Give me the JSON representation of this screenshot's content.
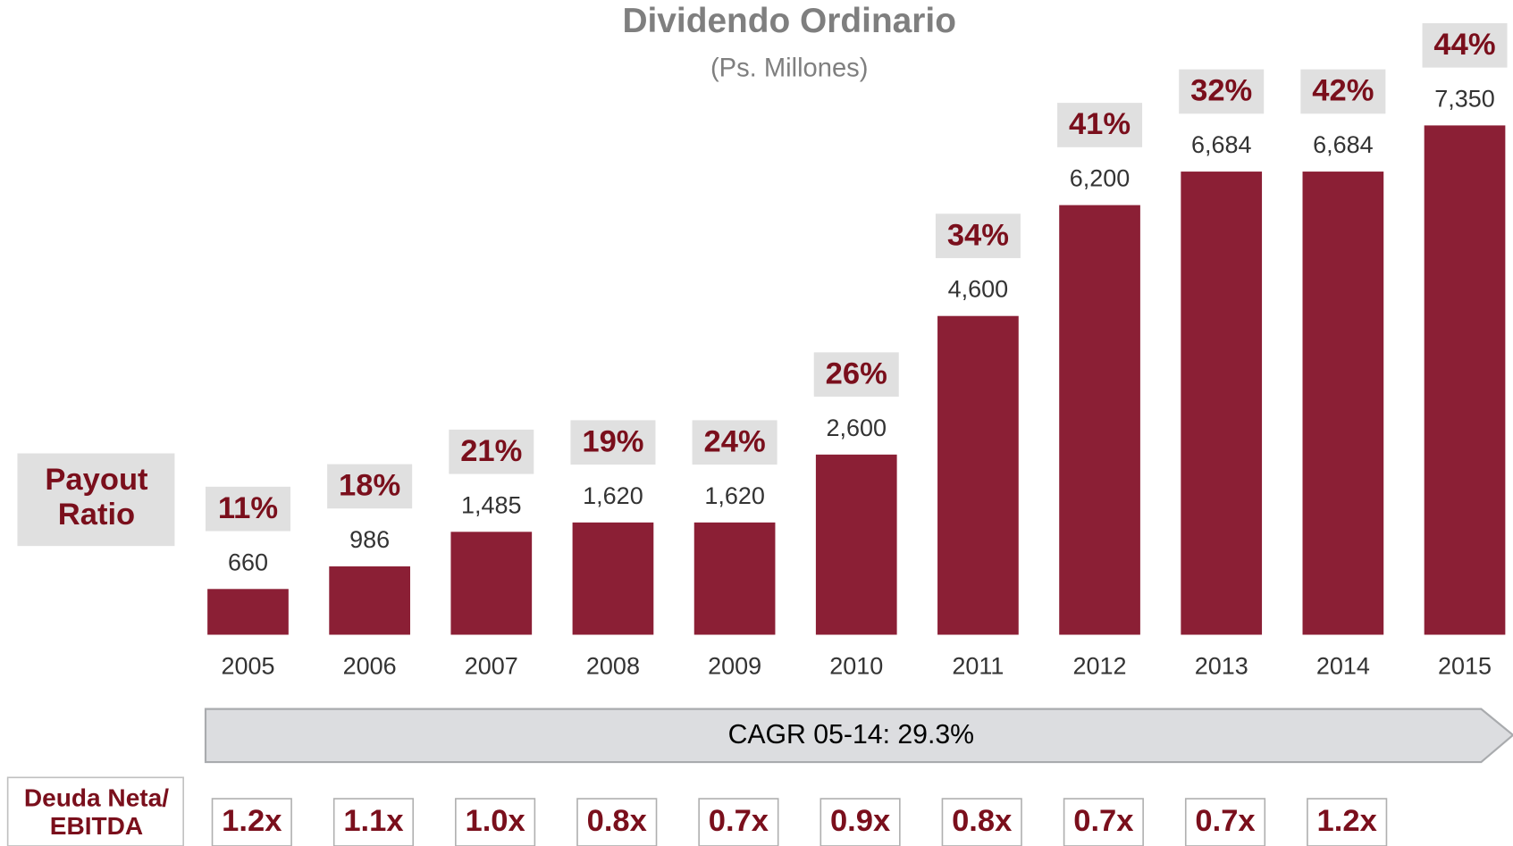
{
  "chart_data": {
    "type": "bar",
    "title": "Dividendo Ordinario",
    "subtitle": "(Ps. Millones)",
    "categories": [
      "2005",
      "2006",
      "2007",
      "2008",
      "2009",
      "2010",
      "2011",
      "2012",
      "2013",
      "2014",
      "2015"
    ],
    "values": [
      660,
      986,
      1485,
      1620,
      1620,
      2600,
      4600,
      6200,
      6684,
      6684,
      7350
    ],
    "value_labels": [
      "660",
      "986",
      "1,485",
      "1,620",
      "1,620",
      "2,600",
      "4,600",
      "6,200",
      "6,684",
      "6,684",
      "7,350"
    ],
    "color": "#8b1f35",
    "ylim": [
      0,
      7350
    ],
    "payout_ratio": {
      "label": [
        "Payout",
        "Ratio"
      ],
      "values": [
        11,
        18,
        21,
        19,
        24,
        26,
        34,
        41,
        32,
        42,
        44
      ],
      "value_labels": [
        "11%",
        "18%",
        "21%",
        "19%",
        "24%",
        "26%",
        "34%",
        "41%",
        "32%",
        "42%",
        "44%"
      ]
    },
    "annotation": "CAGR 05-14: 29.3%",
    "deuda_neta_ebitda": {
      "label": [
        "Deuda Neta/",
        "EBITDA"
      ],
      "values": [
        1.2,
        1.1,
        1.0,
        0.8,
        0.7,
        0.9,
        0.8,
        0.7,
        0.7,
        1.2
      ],
      "value_labels": [
        "1.2x",
        "1.1x",
        "1.0x",
        "0.8x",
        "0.7x",
        "0.9x",
        "0.8x",
        "0.7x",
        "0.7x",
        "1.2x"
      ]
    }
  }
}
